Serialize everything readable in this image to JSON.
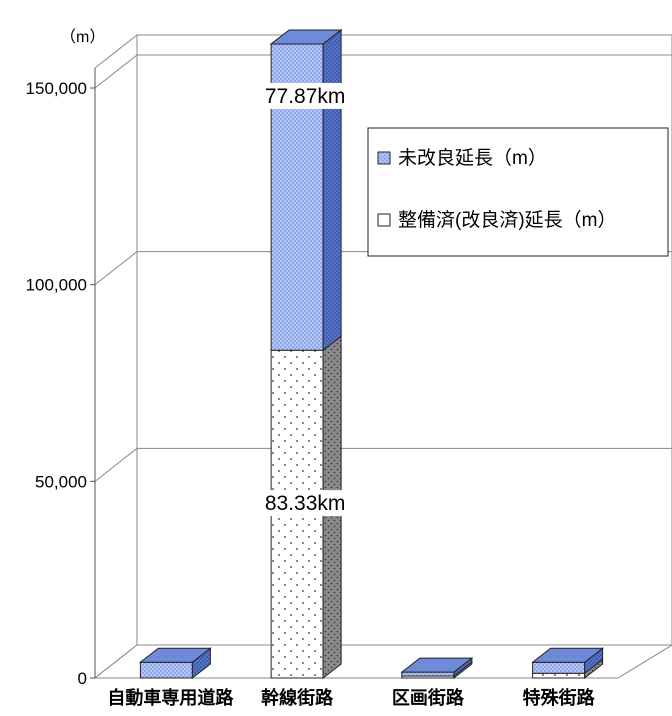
{
  "chart_data": {
    "type": "bar",
    "stacked": true,
    "three_d": true,
    "y_unit_label": "（m）",
    "ylim": [
      0,
      150000
    ],
    "yticks": [
      0,
      50000,
      100000,
      150000
    ],
    "ytick_labels": [
      "0",
      "50,000",
      "100,000",
      "150,000"
    ],
    "categories": [
      "自動車専用道路",
      "幹線街路",
      "区画街路",
      "特殊街路"
    ],
    "series": [
      {
        "name": "整備済(改良済)延長（m）",
        "color": "#ffffff",
        "pattern": "dots",
        "values": [
          0,
          83330,
          500,
          1200
        ]
      },
      {
        "name": "未改良延長（m）",
        "color": "#8fa8ec",
        "pattern": "checker",
        "values": [
          4000,
          77870,
          1000,
          2800
        ]
      }
    ],
    "data_labels": [
      {
        "series": 0,
        "category": 1,
        "text": "83.33km"
      },
      {
        "series": 1,
        "category": 1,
        "text": "77.87km"
      }
    ],
    "legend": {
      "placement": "right",
      "entries": [
        "未改良延長（m）",
        "整備済(改良済)延長（m）"
      ]
    },
    "grid": true
  }
}
